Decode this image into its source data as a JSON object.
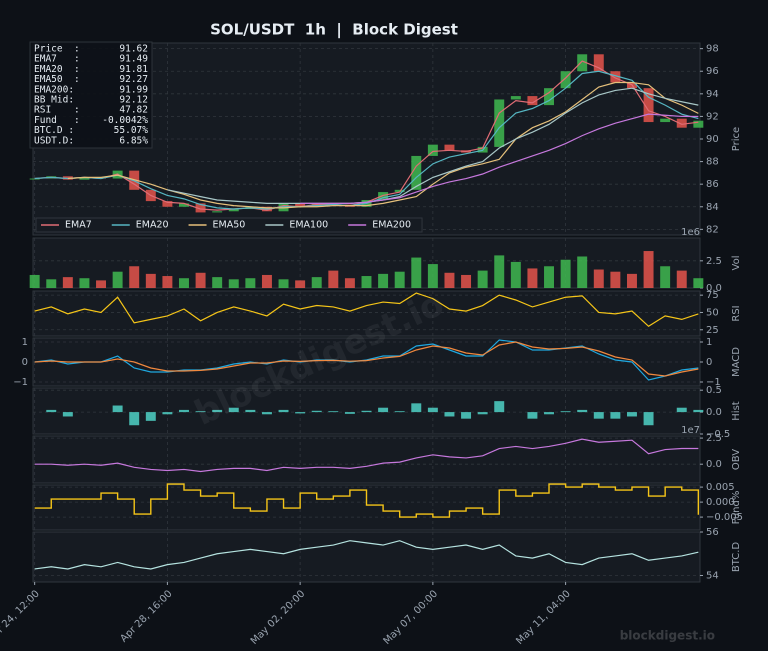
{
  "title": "SOL/USDT  1h  |  Block Digest",
  "watermark": "blockdigest.io",
  "info": [
    {
      "label": "Price  :",
      "value": "91.62"
    },
    {
      "label": "EMA7   :",
      "value": "91.49"
    },
    {
      "label": "EMA20  :",
      "value": "91.81"
    },
    {
      "label": "EMA50  :",
      "value": "92.27"
    },
    {
      "label": "EMA200:",
      "value": "91.99"
    },
    {
      "label": "BB Mid:",
      "value": "92.12"
    },
    {
      "label": "RSI    :",
      "value": "47.82"
    },
    {
      "label": "Fund   :",
      "value": "-0.0042%"
    },
    {
      "label": "BTC.D :",
      "value": "55.07%"
    },
    {
      "label": "USDT.D:",
      "value": "6.85%"
    }
  ],
  "chart_data": [
    {
      "type": "candlestick",
      "ylabel": "Price",
      "xlim": [
        -0.1,
        40.1
      ],
      "ylim": [
        81.5,
        98.5
      ],
      "yticks": [
        82,
        84,
        86,
        88,
        90,
        92,
        94,
        96,
        98
      ],
      "grid": true,
      "legend": "lower left",
      "up_color": "#3fb950",
      "down_color": "#e5534b",
      "close": [
        86.5,
        86.7,
        86.4,
        86.6,
        86.5,
        87.2,
        85.5,
        84.5,
        84.0,
        84.3,
        83.5,
        83.6,
        83.8,
        84.0,
        83.6,
        84.3,
        84.0,
        84.3,
        84.2,
        84.0,
        84.6,
        85.3,
        85.5,
        88.5,
        89.5,
        89.0,
        88.8,
        89.3,
        93.5,
        93.8,
        93.0,
        94.5,
        96.0,
        97.5,
        96.0,
        95.0,
        94.5,
        91.5,
        91.8,
        91.0,
        91.62
      ],
      "series": [
        {
          "name": "EMA7",
          "color": "#e06c75",
          "values": [
            86.5,
            86.6,
            86.5,
            86.6,
            86.5,
            86.9,
            86.0,
            85.0,
            84.4,
            84.3,
            83.8,
            83.7,
            83.8,
            83.9,
            83.7,
            84.1,
            84.0,
            84.2,
            84.2,
            84.1,
            84.4,
            85.0,
            85.3,
            87.6,
            88.9,
            89.0,
            88.9,
            89.2,
            92.3,
            93.4,
            93.2,
            94.1,
            95.4,
            96.9,
            96.3,
            95.4,
            94.8,
            92.5,
            92.0,
            91.3,
            91.49
          ]
        },
        {
          "name": "EMA20",
          "color": "#56b6c2",
          "values": [
            86.5,
            86.6,
            86.5,
            86.6,
            86.5,
            86.8,
            86.3,
            85.6,
            85.0,
            84.7,
            84.2,
            83.9,
            83.8,
            83.9,
            83.8,
            84.0,
            84.0,
            84.1,
            84.2,
            84.1,
            84.3,
            84.8,
            85.1,
            86.6,
            87.8,
            88.4,
            88.7,
            89.0,
            91.0,
            92.3,
            92.7,
            93.4,
            94.5,
            95.8,
            96.0,
            95.6,
            95.2,
            93.7,
            93.0,
            92.2,
            91.81
          ]
        },
        {
          "name": "EMA50",
          "color": "#e5c07b",
          "values": [
            null,
            null,
            86.5,
            86.6,
            86.6,
            86.8,
            86.4,
            86.0,
            85.5,
            85.1,
            84.6,
            84.3,
            84.1,
            84.0,
            83.9,
            83.9,
            84.0,
            84.0,
            84.1,
            84.1,
            84.1,
            84.3,
            84.6,
            84.9,
            86.0,
            87.0,
            87.5,
            87.8,
            88.2,
            90.0,
            91.0,
            91.6,
            92.4,
            93.5,
            94.6,
            95.0,
            95.0,
            94.8,
            93.6,
            93.0,
            92.27
          ]
        },
        {
          "name": "EMA100",
          "color": "#a8c7c7",
          "values": [
            null,
            null,
            null,
            null,
            null,
            null,
            null,
            null,
            85.5,
            85.2,
            84.9,
            84.6,
            84.5,
            84.4,
            84.3,
            84.3,
            84.3,
            84.3,
            84.3,
            84.3,
            84.4,
            84.6,
            84.9,
            85.8,
            86.6,
            87.1,
            87.6,
            88.0,
            89.2,
            90.0,
            90.6,
            91.3,
            92.3,
            93.2,
            93.9,
            94.3,
            94.5,
            94.0,
            93.6,
            93.3,
            93.0
          ]
        },
        {
          "name": "EMA200",
          "color": "#c678dd",
          "values": [
            null,
            null,
            null,
            null,
            null,
            null,
            null,
            null,
            null,
            null,
            null,
            null,
            null,
            null,
            null,
            null,
            84.3,
            84.3,
            84.3,
            84.3,
            84.4,
            84.6,
            84.8,
            85.3,
            85.8,
            86.2,
            86.5,
            86.9,
            87.5,
            88.0,
            88.5,
            89.0,
            89.6,
            90.3,
            90.9,
            91.4,
            91.8,
            92.2,
            92.1,
            92.0,
            91.99
          ]
        }
      ]
    },
    {
      "type": "bar",
      "ylabel": "Vol",
      "offset": "1e6",
      "xlim": [
        -0.1,
        40.1
      ],
      "ylim": [
        0,
        4.6
      ],
      "yticks": [
        {
          "value": 0,
          "label": "0.0"
        },
        2.5
      ],
      "grid": true,
      "color_by": "price",
      "values": [
        1.2,
        0.8,
        1.0,
        0.9,
        0.7,
        1.5,
        2.0,
        1.3,
        1.1,
        0.9,
        1.4,
        1.0,
        0.8,
        0.9,
        1.2,
        0.8,
        0.7,
        1.0,
        1.6,
        0.9,
        1.1,
        1.3,
        1.5,
        2.8,
        2.2,
        1.4,
        1.2,
        1.6,
        3.0,
        2.4,
        1.8,
        2.0,
        2.6,
        2.9,
        1.7,
        1.5,
        1.3,
        3.4,
        2.0,
        1.6,
        0.9
      ]
    },
    {
      "type": "line",
      "ylabel": "RSI",
      "xlim": [
        -0.1,
        40.1
      ],
      "ylim": [
        16,
        81
      ],
      "yticks": [
        25,
        50,
        75
      ],
      "grid": true,
      "series": [
        {
          "color": "#f5c518",
          "values": [
            52,
            58,
            48,
            55,
            50,
            72,
            35,
            40,
            45,
            55,
            38,
            50,
            58,
            52,
            45,
            62,
            55,
            60,
            58,
            52,
            60,
            65,
            63,
            78,
            70,
            55,
            52,
            60,
            75,
            68,
            58,
            65,
            72,
            74,
            50,
            48,
            52,
            30,
            45,
            40,
            47.82
          ]
        }
      ]
    },
    {
      "type": "line",
      "ylabel": "MACD",
      "left_ticks": true,
      "xlim": [
        -0.1,
        40.1
      ],
      "ylim": [
        -1.2,
        1.2
      ],
      "yticks": [
        1,
        0,
        {
          "value": -1,
          "label": "−1"
        }
      ],
      "grid": true,
      "series": [
        {
          "color": "#1fa8e0",
          "values": [
            0.0,
            0.1,
            -0.1,
            0.0,
            0.0,
            0.3,
            -0.3,
            -0.5,
            -0.5,
            -0.4,
            -0.4,
            -0.3,
            -0.1,
            0.0,
            -0.1,
            0.1,
            0.0,
            0.1,
            0.1,
            0.0,
            0.1,
            0.3,
            0.3,
            0.8,
            0.9,
            0.6,
            0.3,
            0.3,
            1.1,
            1.0,
            0.6,
            0.6,
            0.7,
            0.8,
            0.4,
            0.1,
            0.0,
            -0.9,
            -0.7,
            -0.4,
            -0.3
          ]
        },
        {
          "color": "#f0883e",
          "values": [
            0.0,
            0.05,
            0.0,
            0.0,
            0.0,
            0.15,
            0.0,
            -0.3,
            -0.45,
            -0.45,
            -0.42,
            -0.35,
            -0.2,
            -0.05,
            -0.05,
            0.05,
            0.03,
            0.07,
            0.08,
            0.04,
            0.07,
            0.2,
            0.28,
            0.6,
            0.8,
            0.7,
            0.45,
            0.35,
            0.85,
            1.0,
            0.75,
            0.65,
            0.68,
            0.75,
            0.55,
            0.25,
            0.1,
            -0.6,
            -0.7,
            -0.5,
            -0.35
          ]
        }
      ]
    },
    {
      "type": "bar",
      "ylabel": "Hist",
      "xlim": [
        -0.1,
        40.1
      ],
      "ylim": [
        -0.5,
        0.55
      ],
      "yticks": [
        0.5,
        {
          "value": 0,
          "label": "0.0"
        },
        {
          "value": -0.5,
          "label": "−0.5"
        }
      ],
      "grid": true,
      "color": "#4fd1c5",
      "values": [
        0,
        0.05,
        -0.1,
        0,
        0,
        0.15,
        -0.3,
        -0.2,
        -0.05,
        0.05,
        0.02,
        0.05,
        0.1,
        0.05,
        -0.05,
        0.05,
        -0.03,
        0.03,
        0.02,
        -0.04,
        0.03,
        0.1,
        0.02,
        0.2,
        0.1,
        -0.1,
        -0.15,
        -0.05,
        0.25,
        0,
        -0.15,
        -0.05,
        0.02,
        0.05,
        -0.15,
        -0.15,
        -0.1,
        -0.3,
        0,
        0.1,
        0.05
      ]
    },
    {
      "type": "line",
      "ylabel": "OBV",
      "offset": "1e7",
      "xlim": [
        -0.1,
        40.1
      ],
      "ylim": [
        -1.8,
        2.7
      ],
      "yticks": [
        2.5,
        {
          "value": 0,
          "label": "0.0"
        }
      ],
      "grid": true,
      "series": [
        {
          "color": "#c678dd",
          "values": [
            0.0,
            0.0,
            -0.1,
            0.0,
            -0.1,
            0.1,
            -0.3,
            -0.5,
            -0.6,
            -0.5,
            -0.7,
            -0.5,
            -0.4,
            -0.4,
            -0.6,
            -0.3,
            -0.4,
            -0.3,
            -0.3,
            -0.4,
            -0.2,
            0.1,
            0.2,
            0.6,
            0.9,
            0.7,
            0.6,
            0.8,
            1.5,
            1.7,
            1.5,
            1.7,
            2.0,
            2.4,
            2.1,
            2.2,
            2.3,
            1.0,
            1.4,
            1.5,
            1.5
          ]
        }
      ]
    },
    {
      "type": "step",
      "ylabel": "Fund%",
      "xlim": [
        -0.1,
        40.1
      ],
      "ylim": [
        -0.0093,
        0.0057
      ],
      "yticks": [
        0.005,
        {
          "value": 0,
          "label": "0.000"
        },
        {
          "value": -0.005,
          "label": "−0.005"
        }
      ],
      "grid": true,
      "series": [
        {
          "color": "#f5c518",
          "values": [
            -0.002,
            0.001,
            0.001,
            0.001,
            0.003,
            0.001,
            -0.004,
            0.001,
            0.006,
            0.004,
            0.002,
            0.003,
            -0.002,
            -0.003,
            0.001,
            -0.002,
            0.003,
            0.001,
            0.002,
            0.004,
            -0.001,
            -0.003,
            -0.005,
            -0.004,
            -0.005,
            -0.003,
            -0.002,
            -0.004,
            0.004,
            0.002,
            0.003,
            0.006,
            0.005,
            0.006,
            0.005,
            0.004,
            0.005,
            0.002,
            0.005,
            0.004,
            -0.0042
          ]
        }
      ]
    },
    {
      "type": "line",
      "ylabel": "BTC.D",
      "xlim": [
        -0.1,
        40.1
      ],
      "ylim": [
        53.7,
        56.0
      ],
      "yticks": [
        56,
        54
      ],
      "grid": true,
      "xticks": [
        {
          "value": 0,
          "label": "Apr 24, 12:00"
        },
        {
          "value": 8,
          "label": "Apr 28, 16:00"
        },
        {
          "value": 16,
          "label": "May 02, 20:00"
        },
        {
          "value": 24,
          "label": "May 07, 00:00"
        },
        {
          "value": 32,
          "label": "May 11, 04:00"
        }
      ],
      "series": [
        {
          "color": "#b5e3e0",
          "values": [
            54.3,
            54.4,
            54.3,
            54.5,
            54.4,
            54.6,
            54.4,
            54.3,
            54.5,
            54.6,
            54.8,
            55.0,
            55.1,
            55.2,
            55.1,
            55.0,
            55.2,
            55.3,
            55.4,
            55.6,
            55.5,
            55.4,
            55.6,
            55.3,
            55.2,
            55.3,
            55.4,
            55.2,
            55.4,
            54.9,
            54.8,
            55.0,
            54.6,
            54.5,
            54.8,
            54.9,
            55.0,
            54.7,
            54.8,
            54.9,
            55.07
          ]
        }
      ]
    }
  ]
}
